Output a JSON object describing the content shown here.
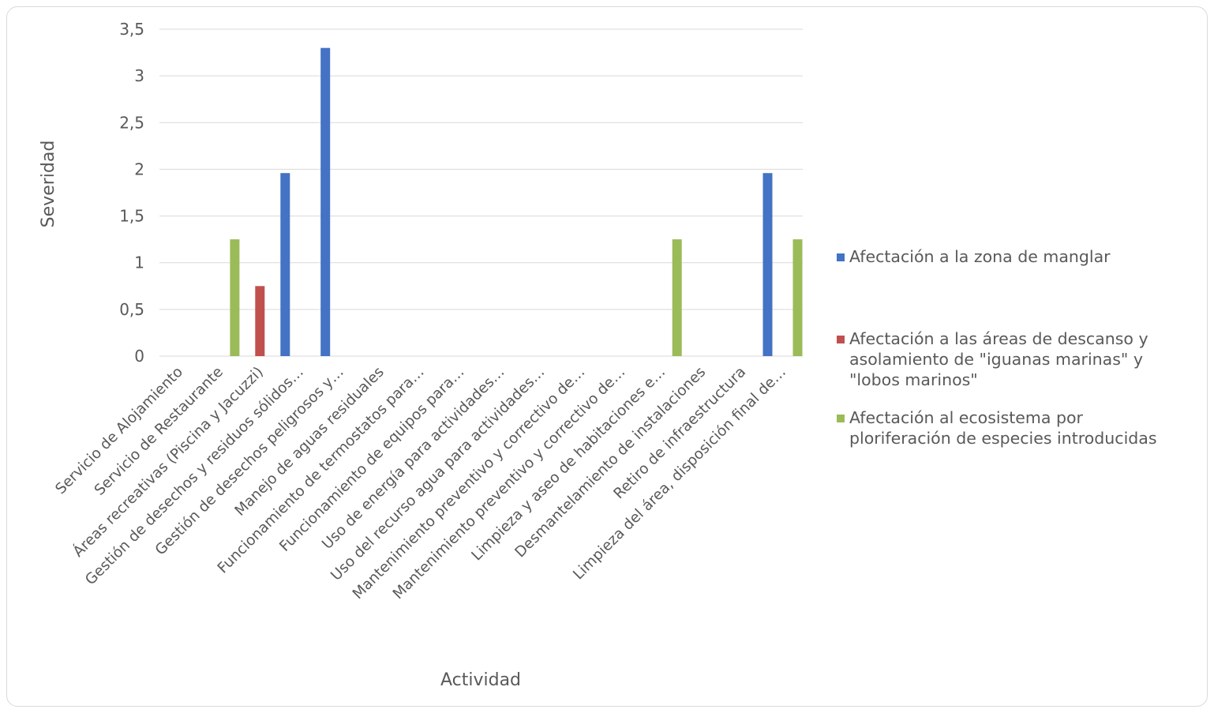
{
  "chart_data": {
    "type": "bar",
    "xlabel": "Actividad",
    "ylabel": "Severidad",
    "ylim": [
      0,
      3.5
    ],
    "yticks": [
      "0",
      "0,5",
      "1",
      "1,5",
      "2",
      "2,5",
      "3",
      "3,5"
    ],
    "grid": true,
    "legend_position": "right",
    "categories": [
      "Servicio de Alojamiento",
      "Servicio de Restaurante",
      "Áreas recreativas (Piscina y Jacuzzi)",
      "Gestión de desechos y residuos sólidos…",
      "Gestión de desechos peligrosos y…",
      "Manejo de aguas residuales",
      "Funcionamiento de termostatos para…",
      "Funcionamiento de equipos para…",
      "Uso de energía para actividades…",
      "Uso del recurso agua para actividades…",
      "Mantenimiento preventivo y correctivo de…",
      "Mantenimiento preventivo y correctivo de…",
      "Limpieza y aseo de habitaciones e…",
      "Desmantelamiento de instalaciones",
      "Retiro de infraestructura",
      "Limpieza del área, disposición final de…"
    ],
    "series": [
      {
        "name": "Afectación a la zona de manglar",
        "color": "#4472c4",
        "values": [
          0,
          0,
          0,
          1.96,
          3.3,
          0,
          0,
          0,
          0,
          0,
          0,
          0,
          0,
          0,
          0,
          1.96
        ]
      },
      {
        "name": "Afectación a las áreas de descanso y asolamiento de \"iguanas marinas\" y \"lobos marinos\"",
        "name_lines": [
          "Afectación a las áreas de descanso y",
          "asolamiento de \"iguanas marinas\" y",
          "\"lobos marinos\""
        ],
        "color": "#c0504d",
        "values": [
          0,
          0,
          0.75,
          0,
          0,
          0,
          0,
          0,
          0,
          0,
          0,
          0,
          0,
          0,
          0,
          0
        ]
      },
      {
        "name": "Afectación al ecosistema por ploriferación de especies introducidas",
        "name_lines": [
          "Afectación al ecosistema por",
          "ploriferación de especies introducidas"
        ],
        "color": "#9bbb59",
        "values": [
          0,
          1.25,
          0,
          0,
          0,
          0,
          0,
          0,
          0,
          0,
          0,
          0,
          1.25,
          0,
          0,
          1.25
        ]
      }
    ]
  }
}
